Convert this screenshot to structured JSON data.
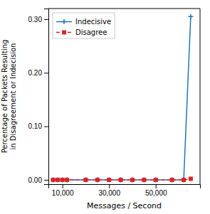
{
  "chart_data": {
    "type": "line",
    "xlabel": "Messages / Second",
    "ylabel": "Percentage of Packets Resulting\nin Disagreement or Indecision",
    "x": [
      6000,
      8000,
      10000,
      12000,
      20000,
      25000,
      30000,
      35000,
      40000,
      45000,
      50000,
      57000,
      62000,
      65000
    ],
    "series": [
      {
        "name": "Indecisive",
        "color": "#1f77b4",
        "marker": "plus",
        "line_style": "solid",
        "values": [
          0.0,
          0.0,
          0.0,
          0.0,
          0.0,
          0.0,
          0.0,
          0.0,
          0.0,
          0.0,
          0.0,
          0.0,
          0.0,
          0.305
        ]
      },
      {
        "name": "Disagree",
        "color": "#d62728",
        "marker": "square",
        "line_style": "dashed",
        "values": [
          0.0,
          0.0,
          0.0,
          0.0,
          0.0,
          0.0,
          0.0,
          0.0,
          0.0,
          0.0,
          0.0,
          0.0,
          0.0,
          0.002
        ]
      }
    ],
    "xlim": [
      4000,
      69000
    ],
    "ylim": [
      -0.008,
      0.32
    ],
    "xticks": [
      {
        "value": 10000,
        "label": "10,000"
      },
      {
        "value": 30000,
        "label": "30,000"
      },
      {
        "value": 50000,
        "label": "50,000"
      }
    ],
    "yticks": [
      {
        "value": 0,
        "label": "0.00"
      },
      {
        "value": 0.1,
        "label": "0.10"
      },
      {
        "value": 0.2,
        "label": "0.20"
      },
      {
        "value": 0.3,
        "label": "0.30"
      }
    ],
    "legend": "upper left"
  }
}
